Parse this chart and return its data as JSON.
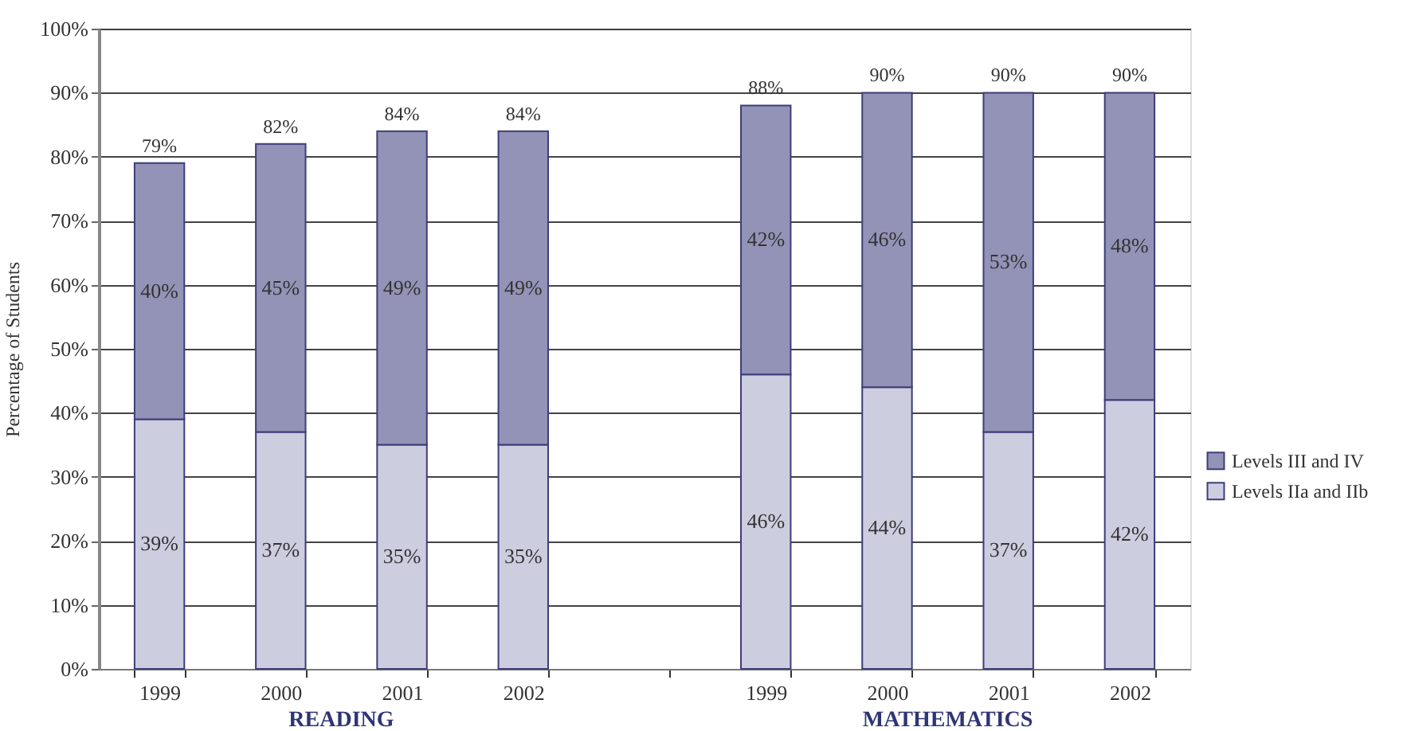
{
  "chart_data": {
    "type": "bar",
    "stacked": true,
    "ylabel": "Percentage of Students",
    "categories": [
      "1999",
      "2000",
      "2001",
      "2002",
      null,
      "1999",
      "2000",
      "2001",
      "2002"
    ],
    "series": [
      {
        "name": "Levels IIa and IIb",
        "color": "#cdcde0",
        "values": [
          39,
          37,
          35,
          35,
          null,
          46,
          44,
          37,
          42
        ],
        "value_labels": [
          "39%",
          "37%",
          "35%",
          "35%",
          null,
          "46%",
          "44%",
          "37%",
          "42%"
        ]
      },
      {
        "name": "Levels III and IV",
        "color": "#9393b7",
        "values": [
          40,
          45,
          49,
          49,
          null,
          42,
          46,
          53,
          48
        ],
        "value_labels": [
          "40%",
          "45%",
          "49%",
          "49%",
          null,
          "42%",
          "46%",
          "53%",
          "48%"
        ]
      }
    ],
    "totals": [
      "79%",
      "82%",
      "84%",
      "84%",
      null,
      "88%",
      "90%",
      "90%",
      "90%"
    ],
    "ylim": [
      0,
      100
    ],
    "yticks": [
      {
        "value": 0,
        "label": "0%"
      },
      {
        "value": 10,
        "label": "10%"
      },
      {
        "value": 20,
        "label": "20%"
      },
      {
        "value": 30,
        "label": "30%"
      },
      {
        "value": 40,
        "label": "40%"
      },
      {
        "value": 50,
        "label": "50%"
      },
      {
        "value": 60,
        "label": "60%"
      },
      {
        "value": 70,
        "label": "70%"
      },
      {
        "value": 80,
        "label": "80%"
      },
      {
        "value": 90,
        "label": "90%"
      },
      {
        "value": 100,
        "label": "100%"
      }
    ],
    "grid": "y",
    "legend": "right",
    "annotations": [
      "READING",
      "MATHEMATICS"
    ]
  }
}
